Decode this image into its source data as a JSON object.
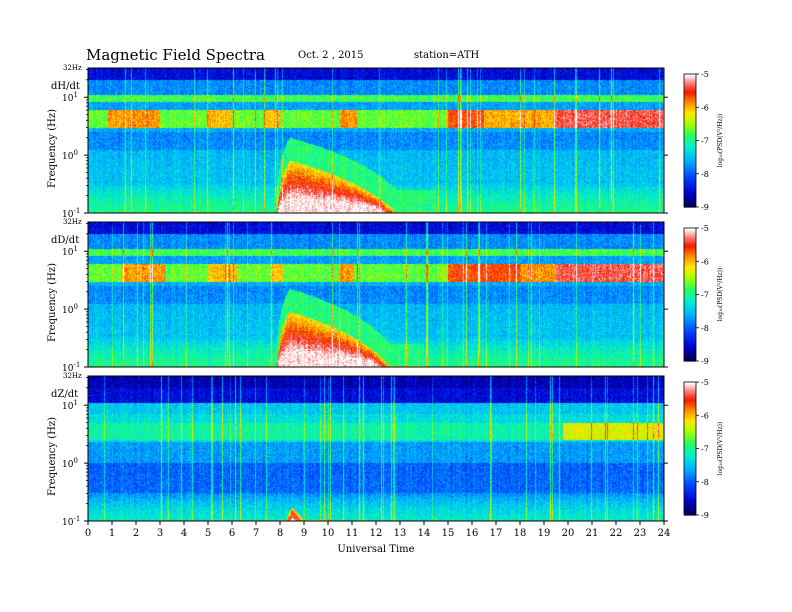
{
  "header": {
    "title": "Magnetic  Field  Spectra",
    "date": "Oct. 2  , 2015",
    "station": "station=ATH"
  },
  "chart_data": {
    "type": "heatmap",
    "xlabel": "Universal Time",
    "ylabel": "Frequency  (Hz)",
    "x_ticks": [
      "0",
      "1",
      "2",
      "3",
      "4",
      "5",
      "6",
      "7",
      "8",
      "9",
      "10",
      "11",
      "12",
      "13",
      "14",
      "15",
      "16",
      "17",
      "18",
      "19",
      "20",
      "21",
      "22",
      "23",
      "24"
    ],
    "xlim": [
      0,
      24
    ],
    "ylim_label": "32Hz",
    "y_ticks": [
      {
        "base": "10",
        "exp": "-1",
        "value": 0.1
      },
      {
        "base": "10",
        "exp": "0",
        "value": 1
      },
      {
        "base": "10",
        "exp": "1",
        "value": 10
      }
    ],
    "y_scale": "log",
    "ylim": [
      0.1,
      32
    ],
    "colorbar": {
      "label": "log₁₀(PSD(V²/Hz))",
      "ticks": [
        "-5",
        "-6",
        "-7",
        "-8",
        "-9"
      ],
      "range": [
        -9,
        -5
      ]
    },
    "panels": [
      {
        "component": "dH/dt",
        "pc1_band": [
          3.0,
          6.0
        ],
        "pc1_activity": [
          [
            0.8,
            3.0,
            0.6
          ],
          [
            5.0,
            6.0,
            0.5
          ],
          [
            7.4,
            8.0,
            0.5
          ],
          [
            10.5,
            11.2,
            0.6
          ],
          [
            15.0,
            16.5,
            0.8
          ],
          [
            16.5,
            19.5,
            0.55
          ],
          [
            19.5,
            24.0,
            1.0
          ]
        ],
        "pi2_event": {
          "start": 7.8,
          "peak": 8.4,
          "decay_end": 14.5,
          "max_freq": 0.8
        }
      },
      {
        "component": "dD/dt",
        "pc1_band": [
          3.0,
          6.0
        ],
        "pc1_activity": [
          [
            1.4,
            3.2,
            0.6
          ],
          [
            5.0,
            6.2,
            0.5
          ],
          [
            7.6,
            8.1,
            0.5
          ],
          [
            10.5,
            11.1,
            0.6
          ],
          [
            15.0,
            18.0,
            0.8
          ],
          [
            18.0,
            19.5,
            0.6
          ],
          [
            19.5,
            24.0,
            1.0
          ]
        ],
        "pi2_event": {
          "start": 7.8,
          "peak": 8.4,
          "decay_end": 14.0,
          "max_freq": 0.9
        }
      },
      {
        "component": "dZ/dt",
        "pc1_band": [
          2.5,
          5.0
        ],
        "pc1_activity": [
          [
            19.8,
            24.0,
            0.7
          ]
        ],
        "pi2_event": {
          "start": 7.9,
          "peak": 8.5,
          "decay_end": 10.2,
          "max_freq": 0.17
        }
      }
    ]
  }
}
